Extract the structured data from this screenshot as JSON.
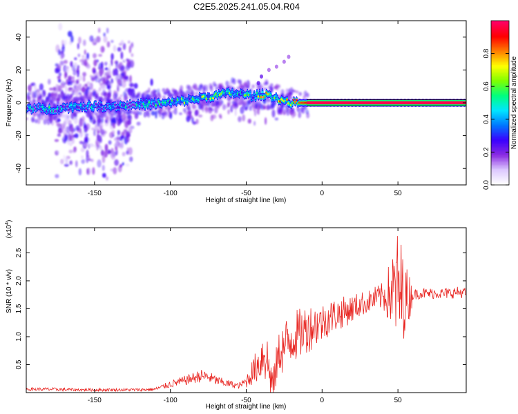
{
  "title": "C2E5.2025.241.05.04.R04",
  "chart_data": [
    {
      "id": "spectrogram",
      "type": "heatmap",
      "xlabel": "Height of straight line (km)",
      "ylabel": "Frequency (Hz)",
      "xlim": [
        -195,
        95
      ],
      "ylim": [
        -50,
        50
      ],
      "xticks": [
        -150,
        -100,
        -50,
        0,
        50
      ],
      "yticks": [
        -40,
        -20,
        0,
        20,
        40
      ],
      "colorbar": {
        "label": "Normalized spectral amplitude",
        "range": [
          0,
          1
        ],
        "ticks": [
          0.0,
          0.2,
          0.4,
          0.6,
          0.8
        ],
        "colors": [
          "#ffffff",
          "#dcc8ff",
          "#8a2be2",
          "#3a00ff",
          "#0077ff",
          "#00e5ff",
          "#00ff7f",
          "#7fff00",
          "#ffff00",
          "#ff7f00",
          "#ff0000",
          "#ff0066"
        ]
      },
      "ridge": {
        "x": [
          -195,
          -180,
          -160,
          -140,
          -120,
          -100,
          -80,
          -60,
          -50,
          -45,
          -40,
          -35,
          -30,
          -25,
          -20,
          -15,
          -10,
          0,
          10,
          20,
          30,
          50,
          70,
          95
        ],
        "freq": [
          -3,
          -4,
          -2,
          -2,
          -1,
          0,
          3,
          6,
          5,
          4,
          5,
          5,
          3,
          1,
          0,
          0,
          0,
          0,
          0,
          0,
          0,
          0,
          0,
          0
        ],
        "amplitude": [
          0.35,
          0.35,
          0.3,
          0.3,
          0.3,
          0.45,
          0.5,
          0.55,
          0.45,
          0.45,
          0.6,
          0.6,
          0.65,
          0.7,
          0.8,
          0.85,
          0.9,
          0.95,
          0.95,
          0.97,
          0.98,
          0.98,
          0.98,
          0.98
        ]
      },
      "side_branch": {
        "x": [
          -42,
          -40,
          -35,
          -30,
          -25,
          -22
        ],
        "freq": [
          12,
          16,
          20,
          22,
          25,
          28
        ]
      }
    },
    {
      "id": "snr",
      "type": "line",
      "xlabel": "Height of straight line (km)",
      "ylabel": "SNR (10 * v/v)",
      "yscale_label": "(x10",
      "yscale_exp": "4",
      "xlim": [
        -195,
        95
      ],
      "ylim": [
        0,
        2.95
      ],
      "xticks": [
        -150,
        -100,
        -50,
        0,
        50
      ],
      "yticks": [
        0.5,
        1,
        1.5,
        2,
        2.5
      ],
      "ytick_labels": [
        "0.5",
        "1.0",
        "1.5",
        "2.0",
        "2.5"
      ],
      "line_color": "#e8231f",
      "series": [
        {
          "name": "SNR",
          "x": [
            -195,
            -180,
            -160,
            -140,
            -120,
            -110,
            -100,
            -90,
            -80,
            -75,
            -70,
            -65,
            -60,
            -55,
            -50,
            -45,
            -40,
            -38,
            -36,
            -34,
            -32,
            -30,
            -28,
            -25,
            -20,
            -15,
            -10,
            -5,
            0,
            5,
            10,
            15,
            20,
            25,
            30,
            35,
            40,
            45,
            48,
            50,
            52,
            55,
            58,
            60,
            65,
            70,
            75,
            80,
            85,
            90,
            95
          ],
          "values": [
            0.06,
            0.06,
            0.05,
            0.05,
            0.05,
            0.06,
            0.15,
            0.22,
            0.3,
            0.28,
            0.22,
            0.18,
            0.15,
            0.12,
            0.2,
            0.4,
            0.6,
            0.85,
            0.55,
            0.3,
            0.1,
            0.5,
            0.75,
            0.8,
            1.0,
            1.05,
            1.15,
            1.2,
            1.25,
            1.35,
            1.4,
            1.45,
            1.5,
            1.58,
            1.62,
            1.68,
            1.72,
            1.78,
            1.8,
            1.85,
            1.75,
            1.7,
            1.72,
            1.75,
            1.78,
            1.77,
            1.78,
            1.77,
            1.78,
            1.8,
            1.78
          ]
        }
      ],
      "noise": {
        "x": [
          -50,
          -45,
          -40,
          -38,
          -35,
          -30,
          -25,
          -20,
          -15,
          -10,
          -5,
          0,
          10,
          20,
          30,
          40,
          45,
          50,
          52,
          55,
          58,
          60
        ],
        "amplitude": [
          0.12,
          0.25,
          0.4,
          0.7,
          0.4,
          0.35,
          0.5,
          0.5,
          0.45,
          0.45,
          0.4,
          0.35,
          0.3,
          0.25,
          0.2,
          0.25,
          0.6,
          1.1,
          1.0,
          0.6,
          0.4,
          0.1
        ]
      }
    }
  ]
}
